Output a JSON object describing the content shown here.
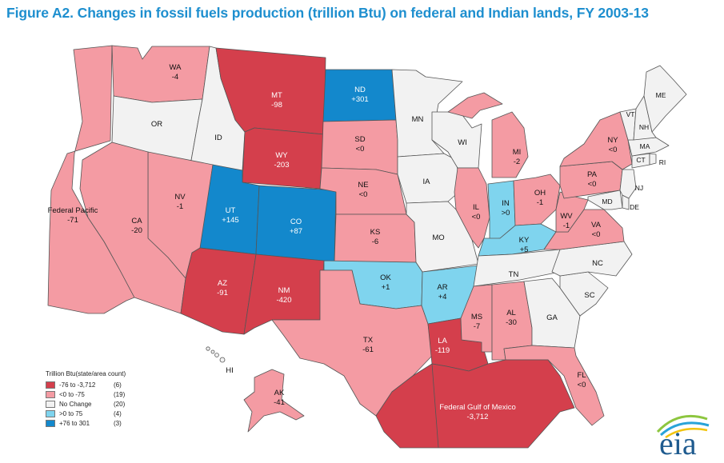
{
  "title": "Figure A2. Changes in fossil fuels production (trillion Btu) on federal and Indian lands, FY 2003-13",
  "colors": {
    "dark_red": "#d43f4c",
    "pink": "#f49ba3",
    "no_change": "#f2f2f2",
    "light_blue": "#7fd4ee",
    "dark_blue": "#1388cc",
    "title_blue": "#1e8fcf"
  },
  "legend": {
    "title": "Trillion Btu(state/area count)",
    "items": [
      {
        "range": "-76 to -3,712",
        "count": "(6)",
        "color": "#d43f4c"
      },
      {
        "range": "<0 to -75",
        "count": "(19)",
        "color": "#f49ba3"
      },
      {
        "range": "No Change",
        "count": "(20)",
        "color": "#f2f2f2"
      },
      {
        "range": ">0 to 75",
        "count": "(4)",
        "color": "#7fd4ee"
      },
      {
        "range": "+76 to 301",
        "count": "(3)",
        "color": "#1388cc"
      }
    ]
  },
  "regions": {
    "wa": {
      "name": "WA",
      "value": "-4"
    },
    "or": {
      "name": "OR",
      "value": ""
    },
    "id": {
      "name": "ID",
      "value": ""
    },
    "mt": {
      "name": "MT",
      "value": "-98"
    },
    "wy": {
      "name": "WY",
      "value": "-203"
    },
    "nd": {
      "name": "ND",
      "value": "+301"
    },
    "sd": {
      "name": "SD",
      "value": "<0"
    },
    "ne": {
      "name": "NE",
      "value": "<0"
    },
    "ks": {
      "name": "KS",
      "value": "-6"
    },
    "ok": {
      "name": "OK",
      "value": "+1"
    },
    "tx": {
      "name": "TX",
      "value": "-61"
    },
    "nm": {
      "name": "NM",
      "value": "-420"
    },
    "az": {
      "name": "AZ",
      "value": "-91"
    },
    "ut": {
      "name": "UT",
      "value": "+145"
    },
    "co": {
      "name": "CO",
      "value": "+87"
    },
    "nv": {
      "name": "NV",
      "value": "-1"
    },
    "ca": {
      "name": "CA",
      "value": "-20"
    },
    "fedpac": {
      "name": "Federal Pacific",
      "value": "-71"
    },
    "mn": {
      "name": "MN",
      "value": ""
    },
    "ia": {
      "name": "IA",
      "value": ""
    },
    "mo": {
      "name": "MO",
      "value": ""
    },
    "ar": {
      "name": "AR",
      "value": "+4"
    },
    "la": {
      "name": "LA",
      "value": "-119"
    },
    "wi": {
      "name": "WI",
      "value": ""
    },
    "il": {
      "name": "IL",
      "value": "<0"
    },
    "in": {
      "name": "IN",
      "value": ">0"
    },
    "mi": {
      "name": "MI",
      "value": "-2"
    },
    "oh": {
      "name": "OH",
      "value": "-1"
    },
    "ky": {
      "name": "KY",
      "value": "+5"
    },
    "tn": {
      "name": "TN",
      "value": ""
    },
    "ms": {
      "name": "MS",
      "value": "-7"
    },
    "al": {
      "name": "AL",
      "value": "-30"
    },
    "ga": {
      "name": "GA",
      "value": ""
    },
    "fl": {
      "name": "FL",
      "value": "<0"
    },
    "sc": {
      "name": "SC",
      "value": ""
    },
    "nc": {
      "name": "NC",
      "value": ""
    },
    "va": {
      "name": "VA",
      "value": "<0"
    },
    "wv": {
      "name": "WV",
      "value": "-1"
    },
    "pa": {
      "name": "PA",
      "value": "<0"
    },
    "ny": {
      "name": "NY",
      "value": "<0"
    },
    "md": {
      "name": "MD",
      "value": ""
    },
    "de": {
      "name": "DE",
      "value": ""
    },
    "nj": {
      "name": "NJ",
      "value": ""
    },
    "ct": {
      "name": "CT",
      "value": ""
    },
    "ri": {
      "name": "RI",
      "value": ""
    },
    "ma": {
      "name": "MA",
      "value": ""
    },
    "vt": {
      "name": "VT",
      "value": ""
    },
    "nh": {
      "name": "NH",
      "value": ""
    },
    "me": {
      "name": "ME",
      "value": ""
    },
    "ak": {
      "name": "AK",
      "value": "-41"
    },
    "hi": {
      "name": "HI",
      "value": ""
    },
    "gom": {
      "name": "Federal Gulf of Mexico",
      "value": "-3,712"
    }
  },
  "logo": {
    "text": "eia"
  }
}
